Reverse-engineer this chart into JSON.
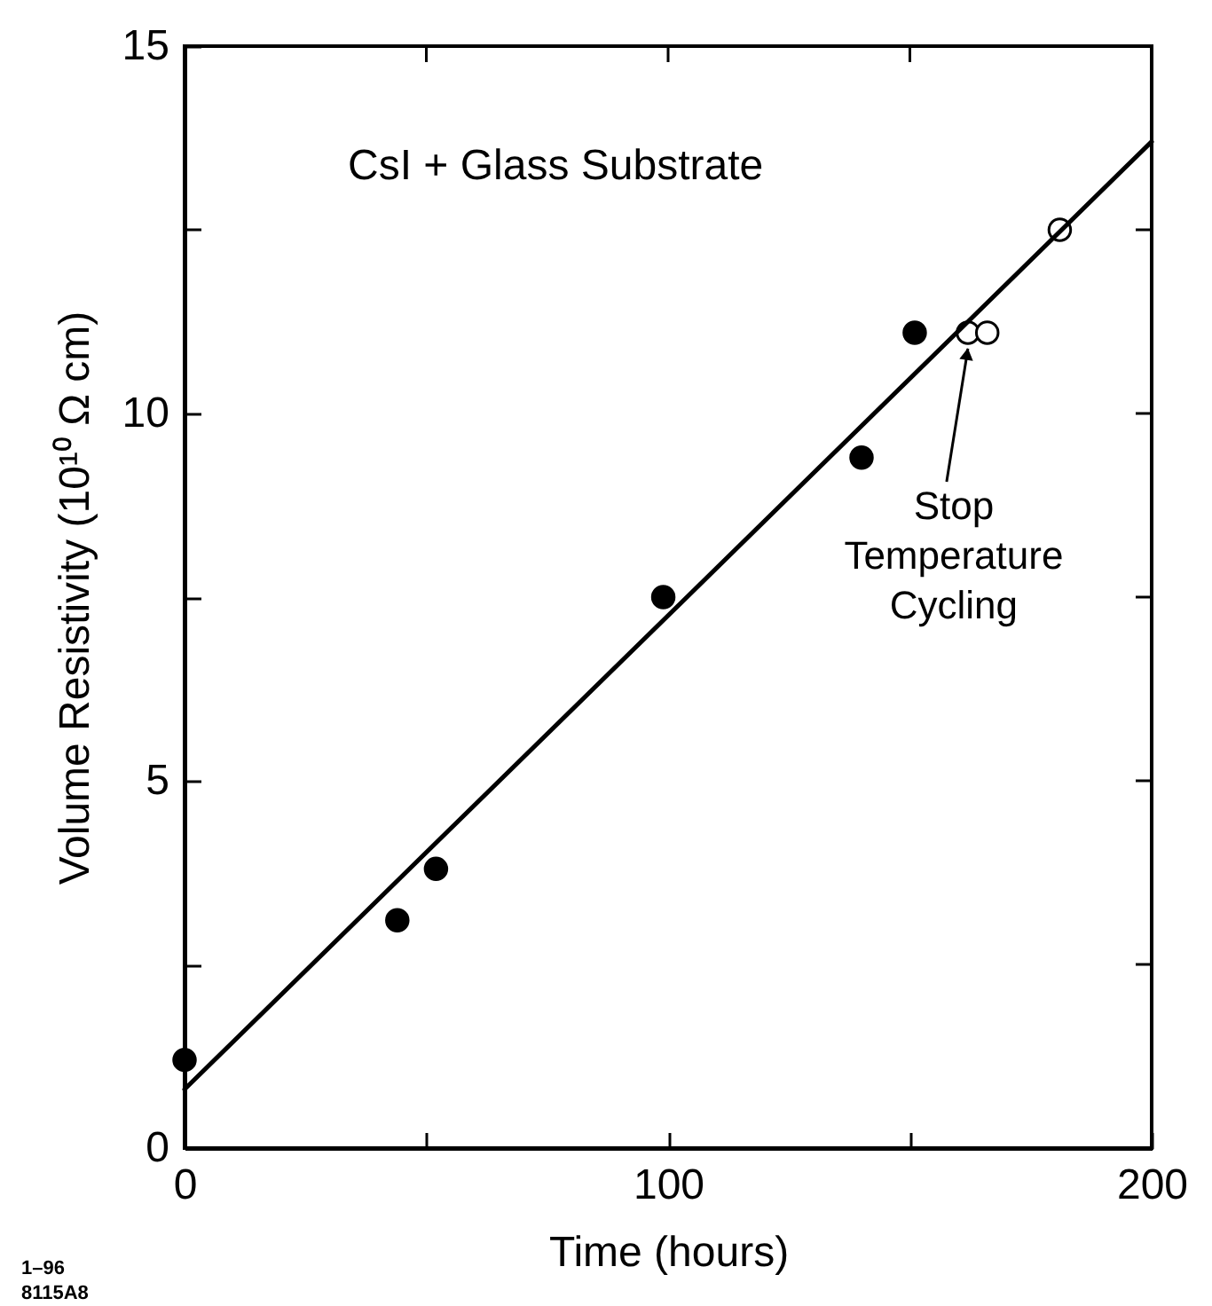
{
  "chart_data": {
    "type": "scatter",
    "xlabel": "Time   (hours)",
    "ylabel": "Volume Resistivity   (10¹⁰ Ω cm)",
    "xlim": [
      0,
      200
    ],
    "ylim": [
      0,
      15
    ],
    "xticks": [
      0,
      {
        "value": 50,
        "label": null
      },
      100,
      {
        "value": 150,
        "label": null
      },
      200
    ],
    "yticks": [
      0,
      {
        "value": 2.5,
        "label": null
      },
      5,
      {
        "value": 7.5,
        "label": null
      },
      10,
      {
        "value": 12.5,
        "label": null
      },
      15
    ],
    "grid": false,
    "marker": "circle",
    "series": [
      {
        "type": "scatter",
        "color": "#000000",
        "x": [
          0,
          44,
          52,
          99,
          140,
          151
        ],
        "values": [
          1.2,
          3.1,
          3.8,
          7.5,
          9.4,
          11.1
        ]
      },
      {
        "type": "scatter",
        "color": "#ffffff",
        "x": [
          162,
          166,
          181
        ],
        "values": [
          11.1,
          11.1,
          12.5
        ]
      },
      {
        "type": "line",
        "color": "#000000",
        "marker": "none",
        "x": [
          0,
          200
        ],
        "values": [
          0.8,
          13.7
        ]
      }
    ],
    "annotations": [
      "CsI + Glass Substrate",
      {
        "text": "Stop Temperature Cycling",
        "x": 162,
        "y": 11.1
      },
      "1–96",
      "8115A8"
    ]
  }
}
